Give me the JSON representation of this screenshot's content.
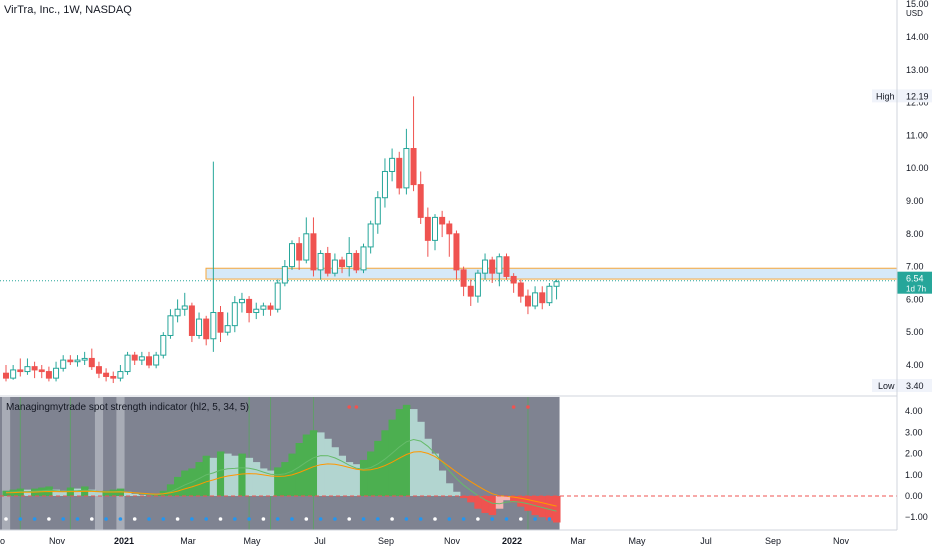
{
  "header": {
    "title": "VirTra, Inc., 1W, NASDAQ"
  },
  "indicator": {
    "title": "Managingmytrade spot strength indicator (hl2, 5, 34, 5)"
  },
  "price_axis": {
    "currency": "USD",
    "ticks": [
      "15.00",
      "14.00",
      "13.00",
      "12.00",
      "11.00",
      "10.00",
      "9.00",
      "8.00",
      "7.00",
      "6.00",
      "5.00",
      "4.00"
    ],
    "high_label": "High",
    "high_value": "12.19",
    "low_label": "Low",
    "low_value": "3.40",
    "last_value": "6.54",
    "last_countdown": "1d 7h"
  },
  "indicator_axis": {
    "ticks": [
      "4.00",
      "3.00",
      "2.00",
      "1.00",
      "0.00",
      "−1.00"
    ]
  },
  "time_axis": {
    "labels": [
      "o",
      "Nov",
      "2021",
      "Mar",
      "May",
      "Jul",
      "Sep",
      "Nov",
      "2022",
      "Mar",
      "May",
      "Jul",
      "Sep",
      "Nov"
    ]
  },
  "colors": {
    "up": "#26a69a",
    "down": "#ef5350",
    "zone_fill": "#d6e9f8",
    "zone_stroke": "#f7a73b",
    "green_area": "#4caf50",
    "pale_area": "#b2d5d0",
    "red_area": "#ef5350",
    "dark_bg": "#7f8391",
    "zero_line": "#ef5350"
  },
  "chart_data": [
    {
      "type": "candlestick",
      "title": "VirTra, Inc., 1W, NASDAQ",
      "ylim": [
        3.4,
        15.0
      ],
      "high": 12.19,
      "low": 3.4,
      "last": 6.54,
      "zone": [
        6.62,
        6.95
      ],
      "candles": [
        [
          3.75,
          3.6,
          4.0,
          3.5
        ],
        [
          3.6,
          3.85,
          4.0,
          3.55
        ],
        [
          3.85,
          3.8,
          4.2,
          3.65
        ],
        [
          3.8,
          3.95,
          4.2,
          3.7
        ],
        [
          3.95,
          3.85,
          4.1,
          3.6
        ],
        [
          3.85,
          3.8,
          4.0,
          3.6
        ],
        [
          3.8,
          3.6,
          3.95,
          3.5
        ],
        [
          3.6,
          3.9,
          4.1,
          3.5
        ],
        [
          3.9,
          4.15,
          4.3,
          3.8
        ],
        [
          4.15,
          4.1,
          4.3,
          4.0
        ],
        [
          4.1,
          4.15,
          4.3,
          3.95
        ],
        [
          4.15,
          4.2,
          4.4,
          4.0
        ],
        [
          4.2,
          3.95,
          4.5,
          3.85
        ],
        [
          3.95,
          3.75,
          4.1,
          3.6
        ],
        [
          3.75,
          3.65,
          3.9,
          3.5
        ],
        [
          3.65,
          3.6,
          3.8,
          3.45
        ],
        [
          3.6,
          3.8,
          4.0,
          3.5
        ],
        [
          3.8,
          4.3,
          4.4,
          3.7
        ],
        [
          4.3,
          4.15,
          4.4,
          4.0
        ],
        [
          4.15,
          4.25,
          4.4,
          4.0
        ],
        [
          4.25,
          4.0,
          4.4,
          3.9
        ],
        [
          4.0,
          4.3,
          4.4,
          3.9
        ],
        [
          4.3,
          4.9,
          5.0,
          4.2
        ],
        [
          4.9,
          5.5,
          5.7,
          4.8
        ],
        [
          5.5,
          5.7,
          6.0,
          5.3
        ],
        [
          5.7,
          5.8,
          6.2,
          5.5
        ],
        [
          5.8,
          4.9,
          5.9,
          4.7
        ],
        [
          4.9,
          5.4,
          5.6,
          4.8
        ],
        [
          5.4,
          4.8,
          5.5,
          4.6
        ],
        [
          4.8,
          5.6,
          10.2,
          4.4
        ],
        [
          5.6,
          5.0,
          5.8,
          4.7
        ],
        [
          5.0,
          5.2,
          5.6,
          4.9
        ],
        [
          5.2,
          5.9,
          6.1,
          5.0
        ],
        [
          5.9,
          6.0,
          6.2,
          5.6
        ],
        [
          6.0,
          5.6,
          6.1,
          5.3
        ],
        [
          5.6,
          5.7,
          5.9,
          5.4
        ],
        [
          5.7,
          5.8,
          5.9,
          5.5
        ],
        [
          5.8,
          5.7,
          5.9,
          5.5
        ],
        [
          5.7,
          6.5,
          6.6,
          5.6
        ],
        [
          6.5,
          7.0,
          7.2,
          6.4
        ],
        [
          7.0,
          7.7,
          7.8,
          6.9
        ],
        [
          7.7,
          7.2,
          7.9,
          6.9
        ],
        [
          7.2,
          8.0,
          8.5,
          7.1
        ],
        [
          8.0,
          6.9,
          8.5,
          6.7
        ],
        [
          6.9,
          7.4,
          7.5,
          6.6
        ],
        [
          7.4,
          6.8,
          7.6,
          6.7
        ],
        [
          6.8,
          7.2,
          7.4,
          6.7
        ],
        [
          7.2,
          7.0,
          7.3,
          6.8
        ],
        [
          7.0,
          7.4,
          7.9,
          6.7
        ],
        [
          7.4,
          6.9,
          7.5,
          6.8
        ],
        [
          6.9,
          7.6,
          7.7,
          6.8
        ],
        [
          7.6,
          8.3,
          8.4,
          7.4
        ],
        [
          8.3,
          9.1,
          9.3,
          8.0
        ],
        [
          9.1,
          9.9,
          10.3,
          8.8
        ],
        [
          9.9,
          10.3,
          10.6,
          9.6
        ],
        [
          10.3,
          9.4,
          10.5,
          9.2
        ],
        [
          9.4,
          10.6,
          11.2,
          9.2
        ],
        [
          10.6,
          9.5,
          12.19,
          9.3
        ],
        [
          9.5,
          8.5,
          9.9,
          8.3
        ],
        [
          8.5,
          7.8,
          8.8,
          7.3
        ],
        [
          7.8,
          8.5,
          8.6,
          7.5
        ],
        [
          8.5,
          8.3,
          8.7,
          7.9
        ],
        [
          8.3,
          8.0,
          8.4,
          7.3
        ],
        [
          8.0,
          6.9,
          8.1,
          6.6
        ],
        [
          6.9,
          6.4,
          7.0,
          6.1
        ],
        [
          6.4,
          6.1,
          6.6,
          5.8
        ],
        [
          6.1,
          6.8,
          6.9,
          5.9
        ],
        [
          6.8,
          7.2,
          7.4,
          6.6
        ],
        [
          7.2,
          6.8,
          7.3,
          6.5
        ],
        [
          6.8,
          7.3,
          7.4,
          6.4
        ],
        [
          7.3,
          6.7,
          7.4,
          6.6
        ],
        [
          6.7,
          6.5,
          6.8,
          6.2
        ],
        [
          6.5,
          6.1,
          6.6,
          5.9
        ],
        [
          6.1,
          5.8,
          6.3,
          5.55
        ],
        [
          5.8,
          6.2,
          6.4,
          5.7
        ],
        [
          6.2,
          5.9,
          6.4,
          5.7
        ],
        [
          5.9,
          6.4,
          6.5,
          5.8
        ],
        [
          6.4,
          6.54,
          6.6,
          6.0
        ]
      ]
    },
    {
      "type": "area",
      "title": "Managingmytrade spot strength indicator (hl2, 5, 34, 5)",
      "ylim": [
        -1.6,
        4.5
      ],
      "values": [
        0.25,
        0.3,
        0.35,
        0.3,
        0.35,
        0.4,
        0.45,
        0.3,
        0.25,
        0.4,
        0.35,
        0.45,
        0.3,
        0.2,
        0.25,
        0.3,
        0.35,
        0.2,
        0.1,
        0.05,
        0.0,
        0.05,
        0.25,
        0.55,
        0.9,
        1.2,
        1.3,
        1.6,
        1.9,
        1.8,
        2.1,
        2.0,
        1.9,
        2.0,
        1.8,
        1.6,
        1.3,
        1.2,
        1.35,
        1.6,
        2.0,
        2.5,
        2.9,
        3.1,
        3.0,
        2.7,
        2.3,
        1.9,
        1.6,
        1.5,
        1.7,
        2.1,
        2.6,
        3.1,
        3.6,
        4.1,
        4.3,
        4.1,
        3.5,
        2.7,
        2.0,
        1.2,
        0.6,
        0.2,
        -0.1,
        -0.3,
        -0.6,
        -0.8,
        -0.9,
        -0.6,
        -0.2,
        -0.3,
        -0.5,
        -0.7,
        -0.9,
        -1.0,
        -1.15,
        -1.25
      ]
    }
  ]
}
